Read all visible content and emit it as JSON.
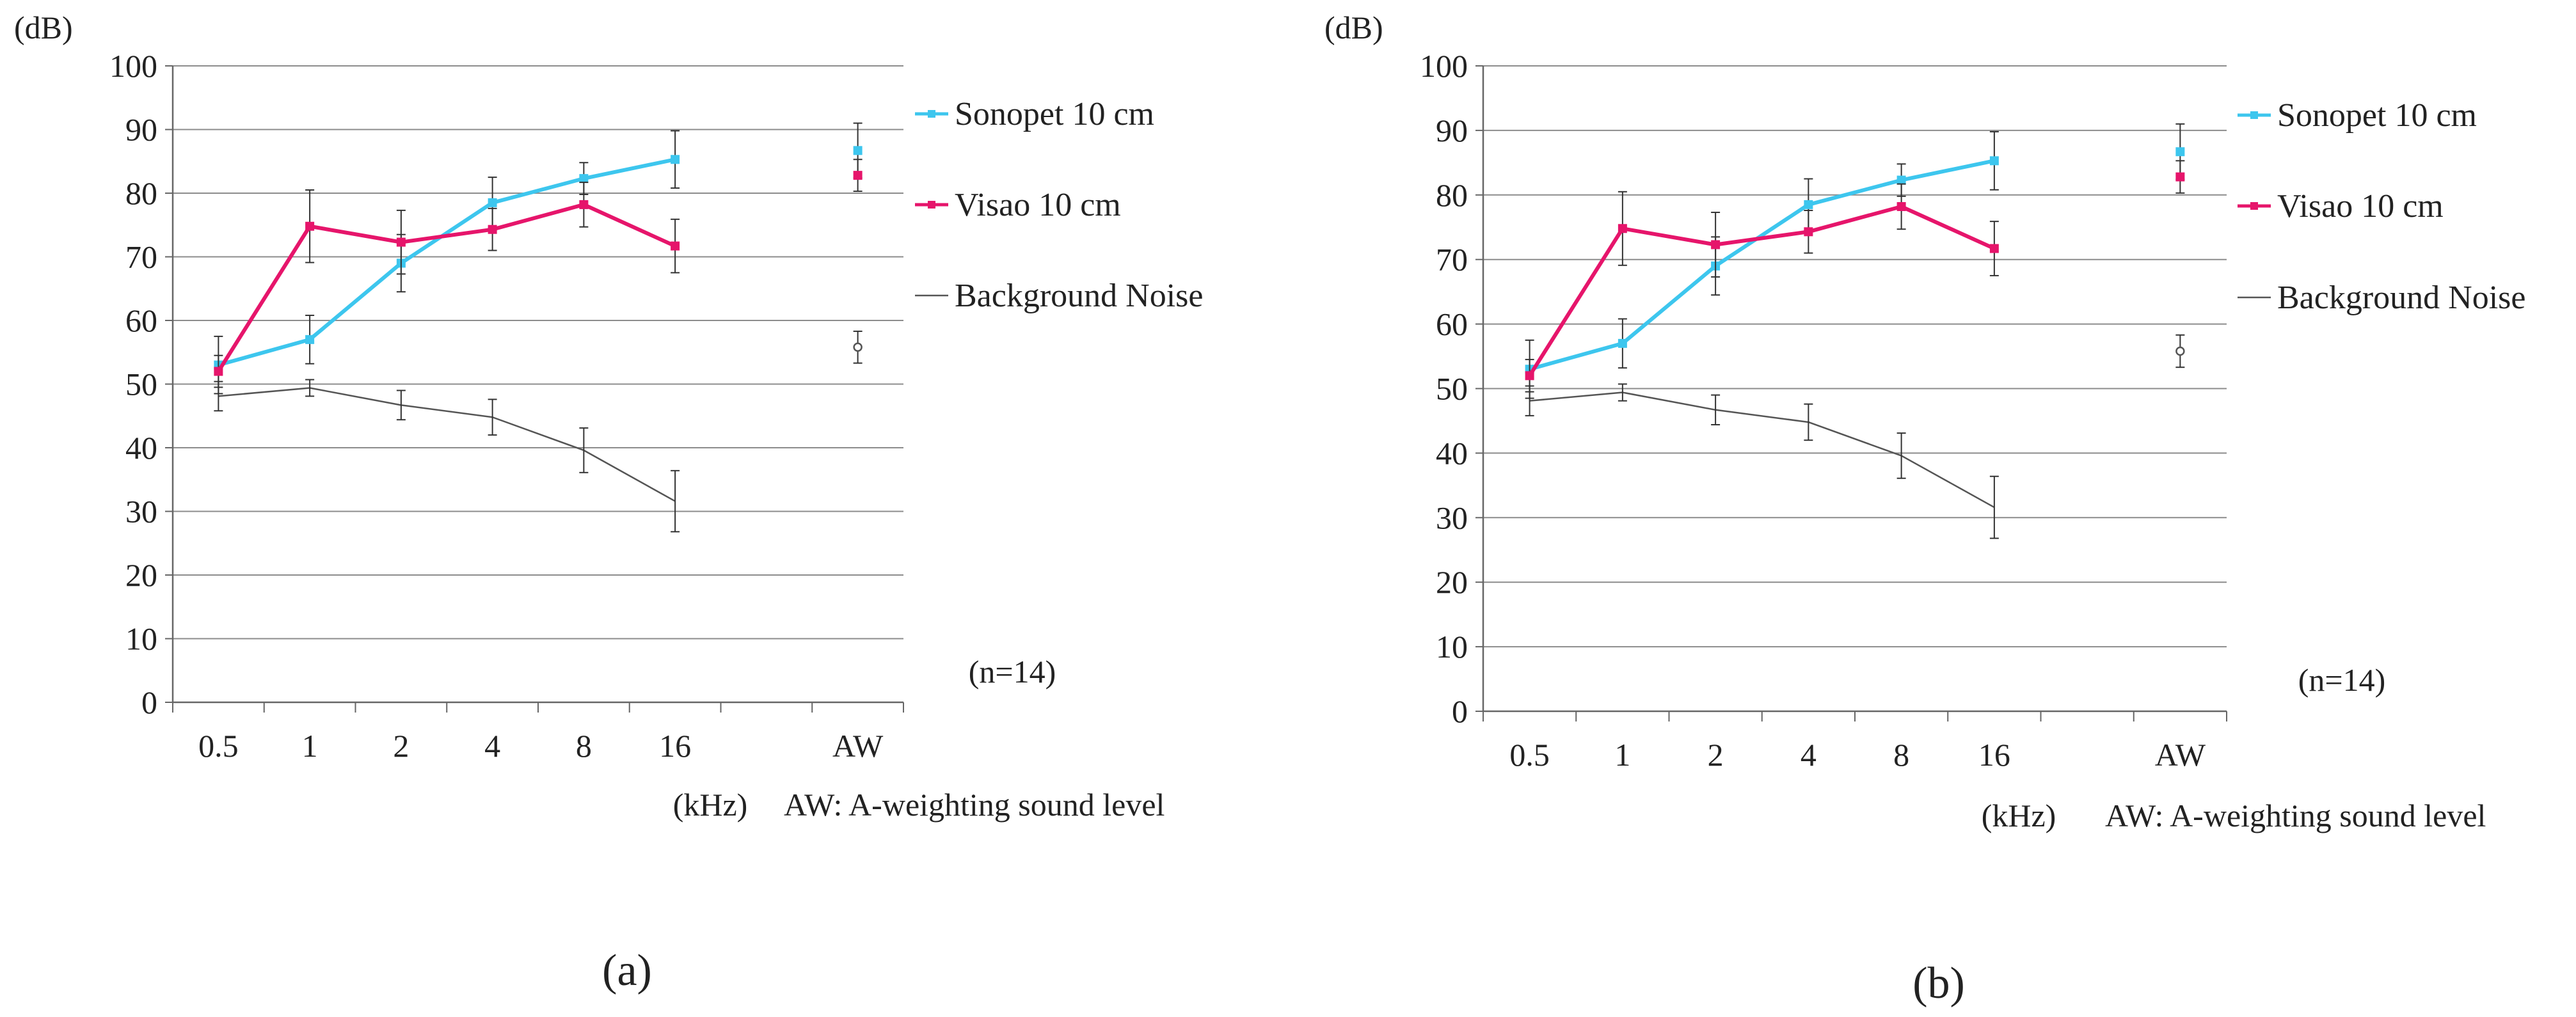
{
  "chart_data": [
    {
      "panel": "a",
      "type": "line",
      "ylabel": "(dB)",
      "ylim": [
        0,
        100
      ],
      "yticks": [
        0,
        10,
        20,
        30,
        40,
        50,
        60,
        70,
        80,
        90,
        100
      ],
      "categories": [
        "0.5",
        "1",
        "2",
        "4",
        "8",
        "16",
        "",
        "AW"
      ],
      "xunit": "(kHz)",
      "note": "AW: A-weighting sound level",
      "n_label": "(n=14)",
      "caption": "(a)",
      "series": [
        {
          "name": "Sonopet 10 cm",
          "color": "#3dc6ee",
          "marker": "square",
          "values": [
            53,
            57,
            69,
            78.5,
            82.3,
            85.3,
            null,
            86.7
          ],
          "errors": [
            4.5,
            3.8,
            4.5,
            4,
            2.5,
            4.5,
            null,
            4.3
          ]
        },
        {
          "name": "Visao 10 cm",
          "color": "#e6156b",
          "marker": "square",
          "values": [
            52,
            74.8,
            72.3,
            74.3,
            78.2,
            71.7,
            null,
            82.8
          ],
          "errors": [
            2.5,
            5.7,
            5,
            3.3,
            3.5,
            4.2,
            null,
            2.5
          ]
        },
        {
          "name": "Background Noise",
          "color": "#555555",
          "marker": "circle",
          "values": [
            48.1,
            49.4,
            46.7,
            44.8,
            39.6,
            31.6,
            null,
            55.8
          ],
          "errors": [
            2.3,
            1.3,
            2.3,
            2.8,
            3.5,
            4.8,
            null,
            2.5
          ]
        }
      ]
    },
    {
      "panel": "b",
      "type": "line",
      "ylabel": "(dB)",
      "ylim": [
        0,
        100
      ],
      "yticks": [
        0,
        10,
        20,
        30,
        40,
        50,
        60,
        70,
        80,
        90,
        100
      ],
      "categories": [
        "0.5",
        "1",
        "2",
        "4",
        "8",
        "16",
        "",
        "AW"
      ],
      "xunit": "(kHz)",
      "note": "AW: A-weighting sound level",
      "n_label": "(n=14)",
      "caption": "(b)",
      "series": [
        {
          "name": "Sonopet 10 cm",
          "color": "#3dc6ee",
          "marker": "square",
          "values": [
            53,
            57,
            69,
            78.5,
            82.3,
            85.3,
            null,
            86.7
          ],
          "errors": [
            4.5,
            3.8,
            4.5,
            4,
            2.5,
            4.5,
            null,
            4.3
          ]
        },
        {
          "name": "Visao 10 cm",
          "color": "#e6156b",
          "marker": "square",
          "values": [
            52,
            74.8,
            72.3,
            74.3,
            78.2,
            71.7,
            null,
            82.8
          ],
          "errors": [
            2.5,
            5.7,
            5,
            3.3,
            3.5,
            4.2,
            null,
            2.5
          ]
        },
        {
          "name": "Background Noise",
          "color": "#555555",
          "marker": "circle",
          "values": [
            48.1,
            49.4,
            46.7,
            44.8,
            39.6,
            31.6,
            null,
            55.8
          ],
          "errors": [
            2.3,
            1.3,
            2.3,
            2.8,
            3.5,
            4.8,
            null,
            2.5
          ]
        }
      ]
    }
  ]
}
